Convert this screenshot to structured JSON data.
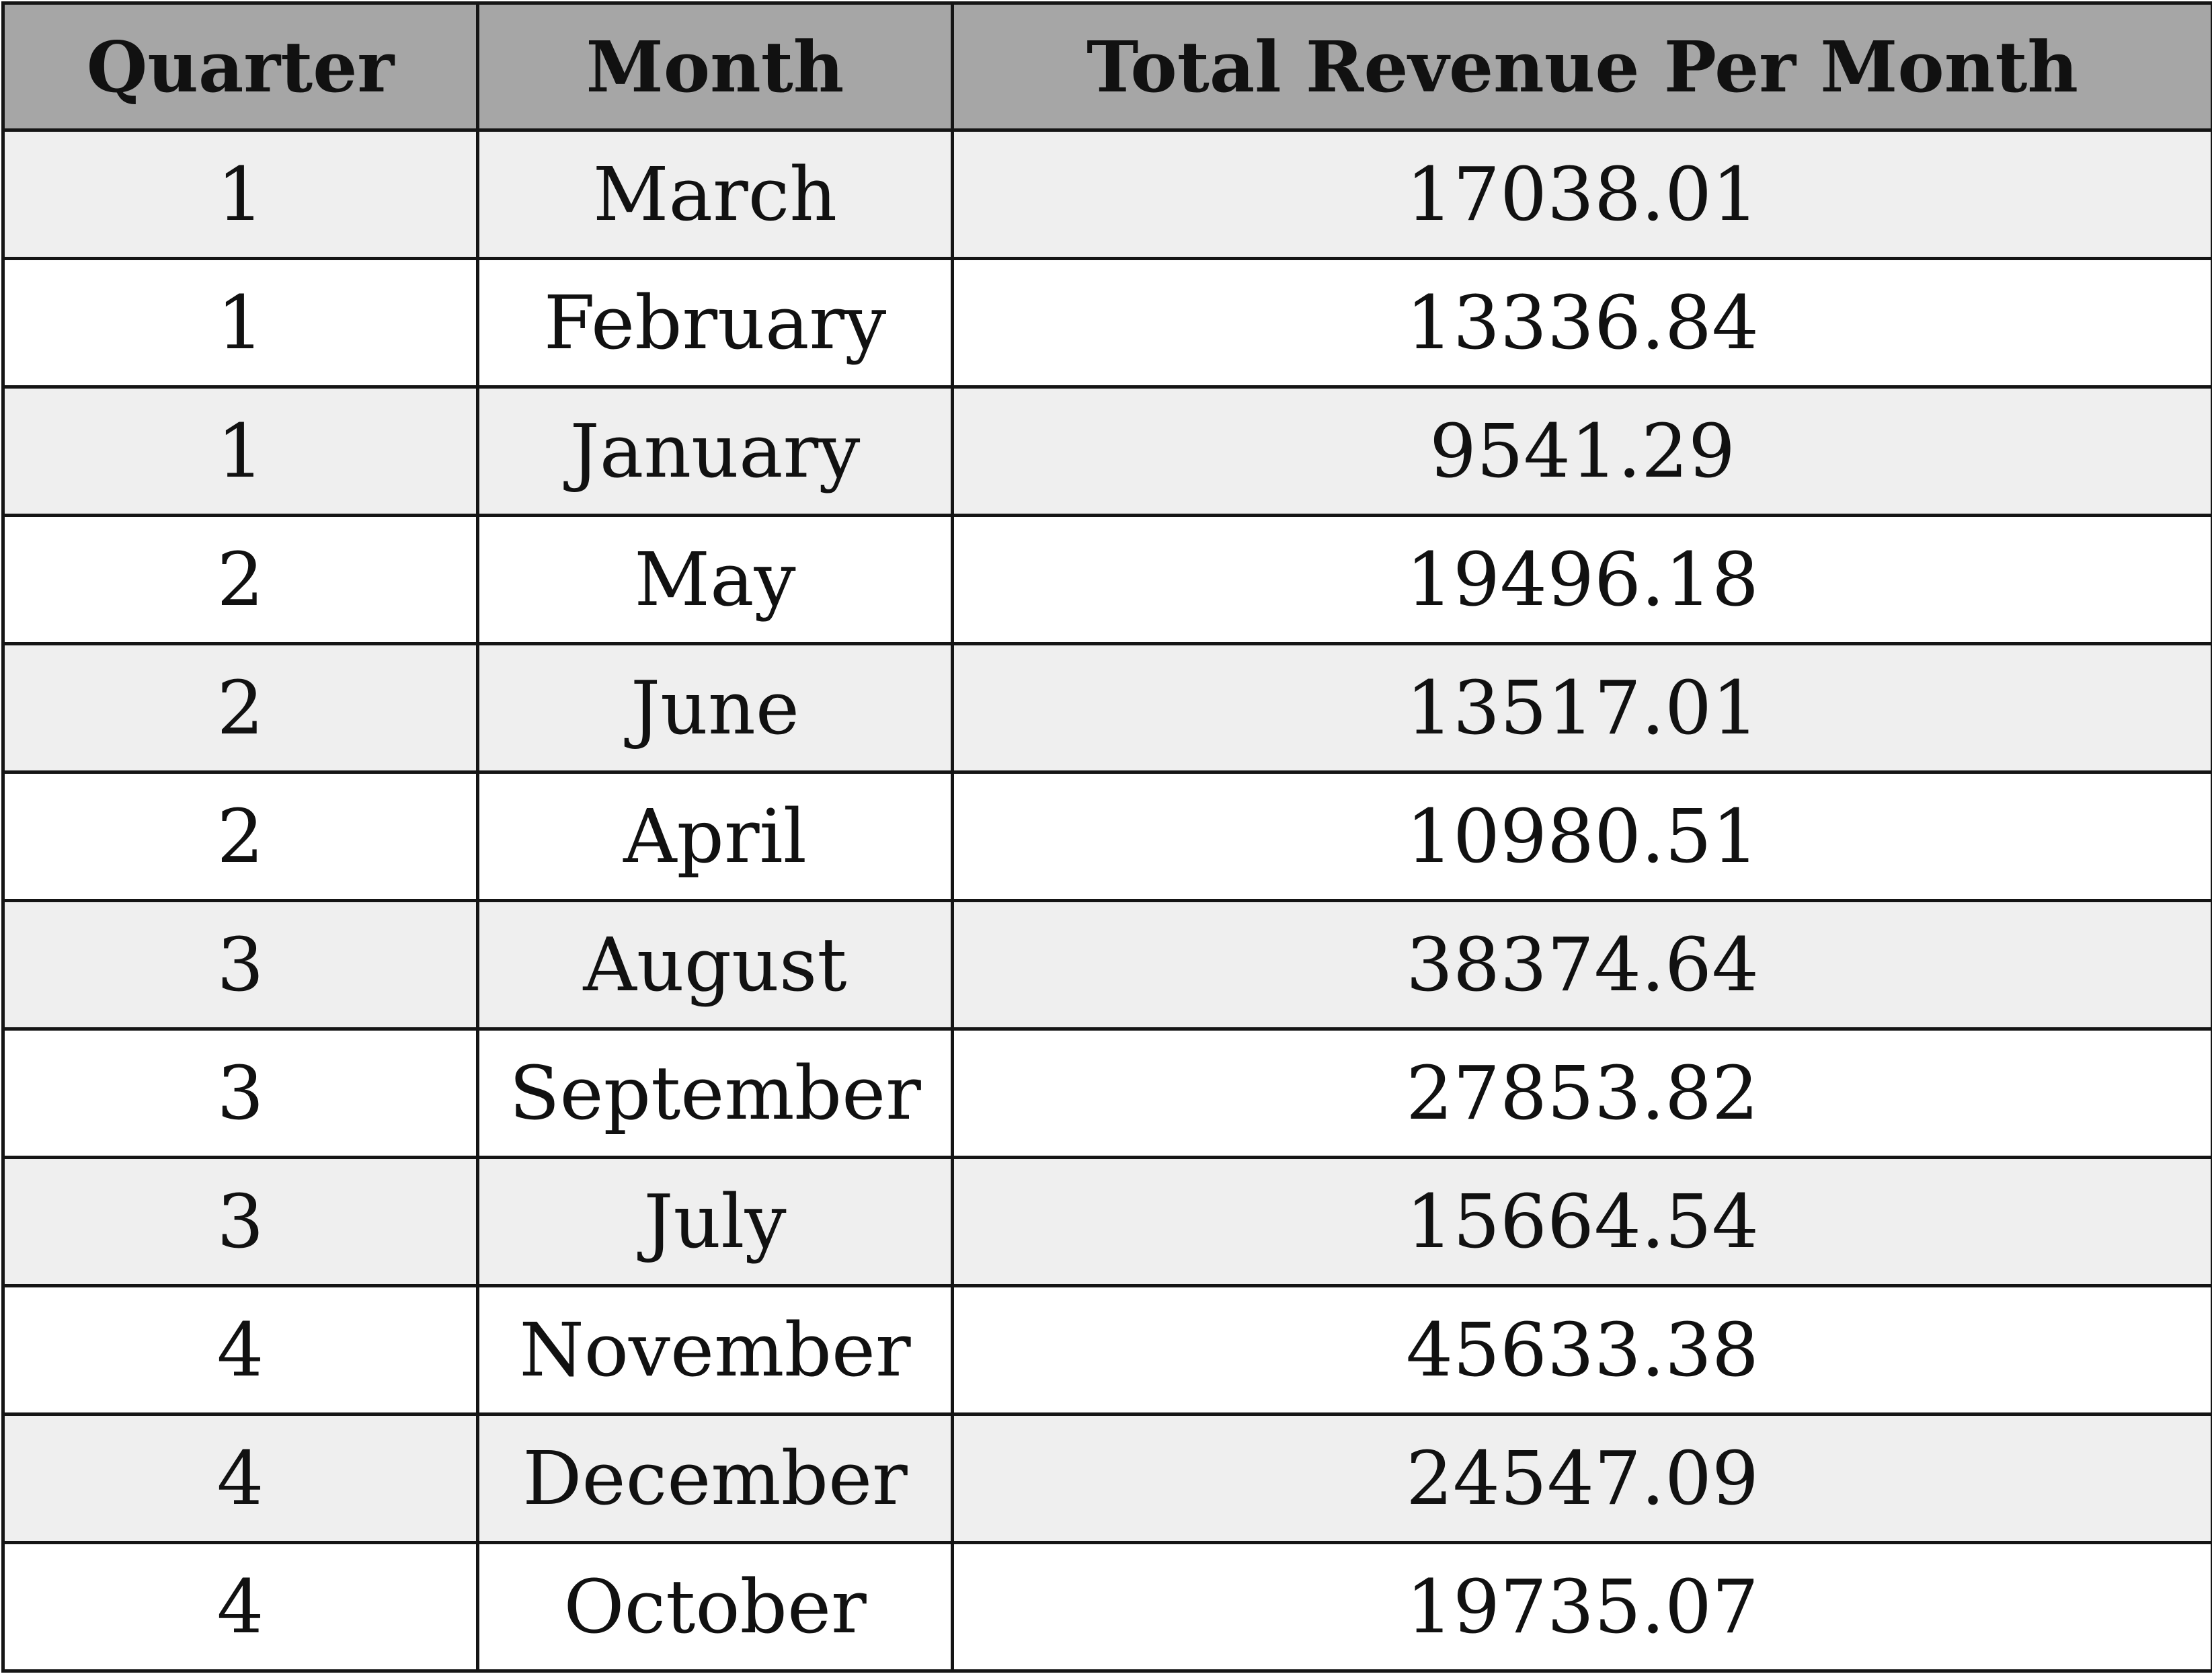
{
  "table": {
    "headers": [
      "Quarter",
      "Month",
      "Total Revenue Per Month"
    ],
    "rows": [
      [
        "1",
        "March",
        "17038.01"
      ],
      [
        "1",
        "February",
        "13336.84"
      ],
      [
        "1",
        "January",
        "9541.29"
      ],
      [
        "2",
        "May",
        "19496.18"
      ],
      [
        "2",
        "June",
        "13517.01"
      ],
      [
        "2",
        "April",
        "10980.51"
      ],
      [
        "3",
        "August",
        "38374.64"
      ],
      [
        "3",
        "September",
        "27853.82"
      ],
      [
        "3",
        "July",
        "15664.54"
      ],
      [
        "4",
        "November",
        "45633.38"
      ],
      [
        "4",
        "December",
        "24547.09"
      ],
      [
        "4",
        "October",
        "19735.07"
      ]
    ]
  },
  "colors": {
    "header_background": "#a6a6a6",
    "odd_row_background": "#efefef",
    "even_row_background": "#ffffff",
    "border": "#151515"
  }
}
